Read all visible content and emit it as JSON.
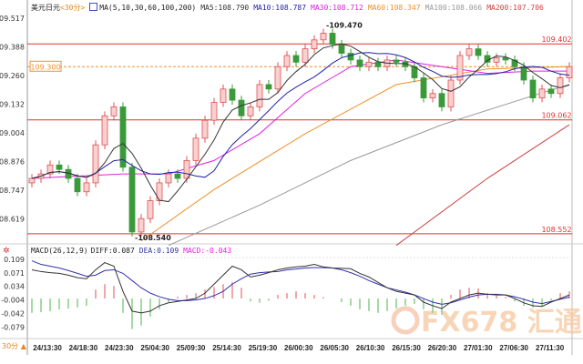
{
  "chart_data": [
    {
      "type": "candlestick",
      "title": "美元日元",
      "period": "<30分>",
      "indicator_label": "MA(5,10,30,60,100,200)",
      "ma_readouts": [
        {
          "label": "MA5:108.790",
          "color": "#333333"
        },
        {
          "label": "MA10:108.787",
          "color": "#2222aa"
        },
        {
          "label": "MA30:108.712",
          "color": "#e020e0"
        },
        {
          "label": "MA60:108.347",
          "color": "#f0902a"
        },
        {
          "label": "MA100:108.066",
          "color": "#999999"
        },
        {
          "label": "MA200:107.706",
          "color": "#d04040"
        }
      ],
      "y_ticks": [
        "109.517",
        "109.388",
        "109.260",
        "109.132",
        "109.004",
        "108.876",
        "108.747",
        "108.619"
      ],
      "ylim": [
        108.5,
        109.56
      ],
      "x_ticks": [
        "24/13:30",
        "24/18:30",
        "24/23:30",
        "25/04:30",
        "25/09:30",
        "25/14:30",
        "25/19:30",
        "26/00:30",
        "26/05:30",
        "26/10:30",
        "26/15:30",
        "26/20:30",
        "27/01:30",
        "27/06:30",
        "27/11:30"
      ],
      "current_price": "109.300",
      "annotations": {
        "high": "109.470",
        "low": "108.540"
      },
      "horizontal_lines": [
        "109.402",
        "109.062",
        "108.552"
      ],
      "up_color": "#e05050",
      "down_color": "#3a9a3a",
      "closes": [
        108.8,
        108.82,
        108.86,
        108.84,
        108.8,
        108.74,
        108.78,
        108.95,
        109.08,
        109.12,
        108.85,
        108.56,
        108.62,
        108.7,
        108.78,
        108.82,
        108.8,
        108.88,
        108.98,
        109.06,
        109.14,
        109.2,
        109.15,
        109.08,
        109.12,
        109.22,
        109.2,
        109.3,
        109.35,
        109.32,
        109.38,
        109.42,
        109.45,
        109.4,
        109.36,
        109.33,
        109.3,
        109.32,
        109.3,
        109.33,
        109.32,
        109.3,
        109.25,
        109.16,
        109.18,
        109.12,
        109.24,
        109.35,
        109.38,
        109.35,
        109.32,
        109.34,
        109.33,
        109.3,
        109.24,
        109.16,
        109.2,
        109.18,
        109.25,
        109.3
      ],
      "ma60": [
        [
          12,
          108.52
        ],
        [
          20,
          108.75
        ],
        [
          30,
          109.0
        ],
        [
          40,
          109.22
        ],
        [
          50,
          109.29
        ],
        [
          59,
          109.3
        ]
      ],
      "ma100": [
        [
          15,
          108.5
        ],
        [
          25,
          108.68
        ],
        [
          35,
          108.88
        ],
        [
          45,
          109.04
        ],
        [
          55,
          109.17
        ],
        [
          59,
          109.22
        ]
      ],
      "ma200": [
        [
          40,
          108.5
        ],
        [
          50,
          108.8
        ],
        [
          59,
          109.04
        ]
      ],
      "ma30": [
        [
          0,
          108.8
        ],
        [
          10,
          108.82
        ],
        [
          15,
          108.82
        ],
        [
          20,
          108.88
        ],
        [
          25,
          109.0
        ],
        [
          30,
          109.18
        ],
        [
          35,
          109.3
        ],
        [
          40,
          109.33
        ],
        [
          45,
          109.3
        ],
        [
          50,
          109.27
        ],
        [
          55,
          109.28
        ],
        [
          59,
          109.28
        ]
      ]
    },
    {
      "type": "macd",
      "label": "MACD(26,12,9)",
      "diff_label": "DIFF:0.087",
      "dea_label": "DEA:0.109",
      "macd_label": "MACD:-0.043",
      "y_ticks": [
        "0.109",
        "0.071",
        "0.034",
        "-0.004",
        "-0.042",
        "-0.079"
      ],
      "ylim": [
        -0.1,
        0.12
      ],
      "diff": [
        0.08,
        0.075,
        0.072,
        0.07,
        0.065,
        0.058,
        0.055,
        0.08,
        0.1,
        0.09,
        0.02,
        -0.035,
        -0.04,
        -0.035,
        -0.02,
        -0.012,
        -0.008,
        -0.004,
        0.0,
        0.015,
        0.04,
        0.065,
        0.09,
        0.08,
        0.06,
        0.065,
        0.072,
        0.08,
        0.085,
        0.088,
        0.09,
        0.095,
        0.088,
        0.085,
        0.084,
        0.083,
        0.07,
        0.06,
        0.045,
        0.03,
        0.02,
        0.015,
        0.01,
        -0.01,
        -0.02,
        -0.028,
        -0.01,
        0.0,
        0.01,
        0.015,
        0.012,
        0.01,
        0.01,
        0.0,
        -0.012,
        -0.02,
        -0.022,
        -0.01,
        0.0,
        0.01
      ],
      "dea": [
        0.105,
        0.095,
        0.09,
        0.085,
        0.078,
        0.07,
        0.062,
        0.065,
        0.078,
        0.08,
        0.07,
        0.05,
        0.03,
        0.015,
        0.005,
        -0.002,
        -0.006,
        -0.006,
        -0.004,
        0.0,
        0.008,
        0.02,
        0.04,
        0.055,
        0.068,
        0.072,
        0.074,
        0.075,
        0.08,
        0.082,
        0.085,
        0.086,
        0.086,
        0.085,
        0.08,
        0.072,
        0.062,
        0.05,
        0.04,
        0.03,
        0.024,
        0.018,
        0.01,
        0.0,
        -0.01,
        -0.016,
        -0.012,
        -0.004,
        0.004,
        0.01,
        0.012,
        0.012,
        0.01,
        0.005,
        -0.002,
        -0.01,
        -0.014,
        -0.008,
        -0.002,
        0.004
      ],
      "hist": [
        -0.04,
        -0.038,
        -0.035,
        -0.03,
        -0.028,
        -0.025,
        -0.02,
        0.025,
        0.04,
        0.035,
        -0.04,
        -0.085,
        -0.075,
        -0.05,
        -0.03,
        -0.01,
        0.005,
        0.01,
        0.015,
        0.025,
        0.032,
        0.04,
        0.045,
        0.03,
        -0.008,
        -0.012,
        -0.006,
        0.01,
        0.015,
        0.02,
        0.015,
        0.01,
        0.004,
        0.0,
        -0.01,
        -0.02,
        -0.03,
        -0.035,
        -0.04,
        -0.035,
        -0.028,
        -0.02,
        -0.015,
        -0.03,
        -0.04,
        -0.045,
        0.01,
        0.025,
        0.03,
        0.028,
        0.015,
        0.008,
        0.004,
        -0.008,
        -0.02,
        -0.025,
        -0.022,
        -0.005,
        0.015,
        0.02
      ]
    }
  ],
  "footer": {
    "period_label": "30分 ▲"
  },
  "watermark": "FX678 汇通网"
}
